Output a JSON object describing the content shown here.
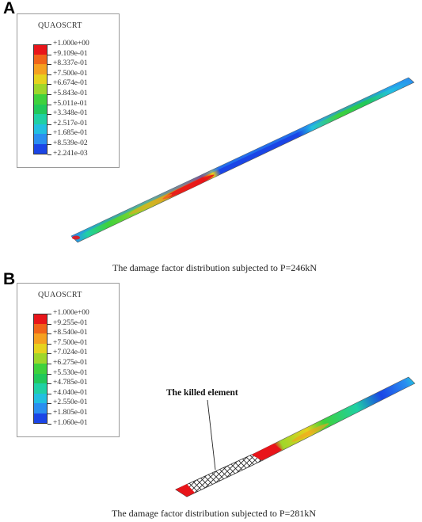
{
  "panels": [
    {
      "letter": "A",
      "legend_title": "QUAOSCRT",
      "legend_values": [
        "+1.000e+00",
        "+9.109e-01",
        "+8.337e-01",
        "+7.500e-01",
        "+6.674e-01",
        "+5.843e-01",
        "+5.011e-01",
        "+3.348e-01",
        "+2.517e-01",
        "+1.685e-01",
        "+8.539e-02",
        "+2.241e-03"
      ],
      "legend_colors": [
        "#e8151a",
        "#f0641a",
        "#f5a020",
        "#e6d21e",
        "#9ed62a",
        "#3fd13c",
        "#21c85a",
        "#1fd0a4",
        "#22bfe0",
        "#2a8ef0",
        "#1b45e6"
      ],
      "caption": "The damage factor distribution subjected to P=246kN"
    },
    {
      "letter": "B",
      "legend_title": "QUAOSCRT",
      "legend_values": [
        "+1.000e+00",
        "+9.255e-01",
        "+8.540e-01",
        "+7.500e-01",
        "+7.024e-01",
        "+6.275e-01",
        "+5.530e-01",
        "+4.785e-01",
        "+4.040e-01",
        "+2.550e-01",
        "+1.805e-01",
        "+1.060e-01"
      ],
      "legend_colors": [
        "#e8151a",
        "#f0641a",
        "#f5a020",
        "#e6d21e",
        "#9ed62a",
        "#3fd13c",
        "#21c85a",
        "#1fd0a4",
        "#22bfe0",
        "#2a8ef0",
        "#1b45e6"
      ],
      "annotation": "The killed element",
      "caption": "The damage factor distribution subjected to P=281kN"
    }
  ]
}
